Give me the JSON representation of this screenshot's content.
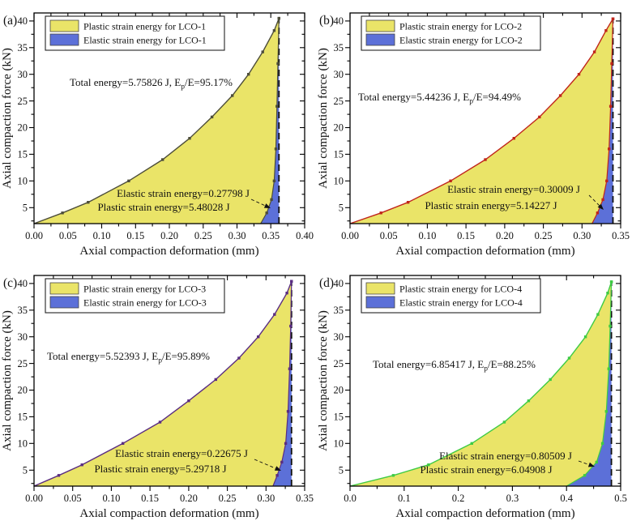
{
  "figure": {
    "background": "#ffffff"
  },
  "chart_data": [
    {
      "type": "area",
      "panel_label": "(a)",
      "sample": "LCO-1",
      "xlabel": "Axial compaction deformation (mm)",
      "ylabel": "Axial compaction force (kN)",
      "xlim": [
        0,
        0.4
      ],
      "xticks": [
        "0.00",
        "0.05",
        "0.10",
        "0.15",
        "0.20",
        "0.25",
        "0.30",
        "0.35",
        "0.40"
      ],
      "ylim": [
        2,
        41.5
      ],
      "yticks": [
        5,
        10,
        15,
        20,
        25,
        30,
        35,
        40
      ],
      "legend": [
        "Plastic strain energy for LCO-1",
        "Elastic strain energy for LCO-1"
      ],
      "legend_position": "upper-left",
      "grid": false,
      "total": {
        "prefix": "Total energy=5.75826 J, E",
        "sub": "p",
        "suffix": "/E=95.17%"
      },
      "total_energy_J": 5.75826,
      "plastic_ratio_pct": 95.17,
      "elastic_label": "Elastic strain energy=0.27798 J",
      "plastic_label": "Plastic strain energy=5.48028 J",
      "elastic_energy_J": 0.27798,
      "plastic_energy_J": 5.48028,
      "line_color": "#4d4d3a",
      "fill_plastic": "#eae468",
      "fill_elastic": "#5c70d8",
      "dash_x": 0.362,
      "loading": [
        [
          0,
          2
        ],
        [
          0.042,
          4
        ],
        [
          0.08,
          6
        ],
        [
          0.14,
          10
        ],
        [
          0.19,
          14
        ],
        [
          0.23,
          18
        ],
        [
          0.263,
          22
        ],
        [
          0.293,
          26
        ],
        [
          0.317,
          30
        ],
        [
          0.338,
          34.2
        ],
        [
          0.355,
          38.2
        ],
        [
          0.362,
          40.5
        ]
      ],
      "unloading": [
        [
          0.362,
          40.5
        ],
        [
          0.3605,
          32
        ],
        [
          0.359,
          24
        ],
        [
          0.3575,
          16
        ],
        [
          0.355,
          10
        ],
        [
          0.351,
          6.5
        ],
        [
          0.344,
          4
        ],
        [
          0.335,
          2
        ]
      ]
    },
    {
      "type": "area",
      "panel_label": "(b)",
      "sample": "LCO-2",
      "xlabel": "Axial compaction deformation (mm)",
      "ylabel": "Axial compaction force (kN)",
      "xlim": [
        0,
        0.35
      ],
      "xticks": [
        "0.00",
        "0.05",
        "0.10",
        "0.15",
        "0.20",
        "0.25",
        "0.30",
        "0.35"
      ],
      "ylim": [
        2,
        41.5
      ],
      "yticks": [
        5,
        10,
        15,
        20,
        25,
        30,
        35,
        40
      ],
      "legend": [
        "Plastic strain energy for LCO-2",
        "Elastic strain energy for LCO-2"
      ],
      "legend_position": "upper-left",
      "grid": false,
      "total": {
        "prefix": "Total energy=5.44236 J, E",
        "sub": "p",
        "suffix": "/E=94.49%"
      },
      "total_energy_J": 5.44236,
      "plastic_ratio_pct": 94.49,
      "elastic_label": "Elastic strain energy=0.30009 J",
      "plastic_label": "Plastic strain energy=5.14227 J",
      "elastic_energy_J": 0.30009,
      "plastic_energy_J": 5.14227,
      "line_color": "#c0251b",
      "fill_plastic": "#eae468",
      "fill_elastic": "#5c70d8",
      "dash_x": 0.34,
      "loading": [
        [
          0,
          2
        ],
        [
          0.04,
          4
        ],
        [
          0.075,
          6
        ],
        [
          0.13,
          10
        ],
        [
          0.175,
          14
        ],
        [
          0.212,
          18
        ],
        [
          0.245,
          22
        ],
        [
          0.272,
          26
        ],
        [
          0.296,
          30
        ],
        [
          0.316,
          34.2
        ],
        [
          0.331,
          38.2
        ],
        [
          0.34,
          40.4
        ]
      ],
      "unloading": [
        [
          0.34,
          40.4
        ],
        [
          0.3385,
          32
        ],
        [
          0.337,
          24
        ],
        [
          0.335,
          16
        ],
        [
          0.332,
          10
        ],
        [
          0.327,
          6.5
        ],
        [
          0.32,
          4
        ],
        [
          0.313,
          2
        ]
      ]
    },
    {
      "type": "area",
      "panel_label": "(c)",
      "sample": "LCO-3",
      "xlabel": "Axial compaction deformation (mm)",
      "ylabel": "Axial compaction force (kN)",
      "xlim": [
        0,
        0.35
      ],
      "xticks": [
        "0.00",
        "0.05",
        "0.10",
        "0.15",
        "0.20",
        "0.25",
        "0.30",
        "0.35"
      ],
      "ylim": [
        2,
        41.5
      ],
      "yticks": [
        5,
        10,
        15,
        20,
        25,
        30,
        35,
        40
      ],
      "legend": [
        "Plastic strain energy for LCO-3",
        "Elastic strain energy for LCO-3"
      ],
      "legend_position": "upper-left",
      "grid": false,
      "total": {
        "prefix": "Total energy=5.52393 J, E",
        "sub": "p",
        "suffix": "/E=95.89%"
      },
      "total_energy_J": 5.52393,
      "plastic_ratio_pct": 95.89,
      "elastic_label": "Elastic strain energy=0.22675 J",
      "plastic_label": "Plastic strain energy=5.29718 J",
      "elastic_energy_J": 0.22675,
      "plastic_energy_J": 5.29718,
      "line_color": "#5a2d82",
      "fill_plastic": "#eae468",
      "fill_elastic": "#5c70d8",
      "dash_x": 0.333,
      "loading": [
        [
          0,
          2
        ],
        [
          0.032,
          4
        ],
        [
          0.062,
          6
        ],
        [
          0.115,
          10
        ],
        [
          0.163,
          14
        ],
        [
          0.2,
          18
        ],
        [
          0.235,
          22
        ],
        [
          0.265,
          26
        ],
        [
          0.29,
          30
        ],
        [
          0.311,
          34.2
        ],
        [
          0.327,
          38.2
        ],
        [
          0.333,
          40.4
        ]
      ],
      "unloading": [
        [
          0.333,
          40.4
        ],
        [
          0.332,
          32
        ],
        [
          0.3305,
          24
        ],
        [
          0.3285,
          16
        ],
        [
          0.3255,
          10
        ],
        [
          0.3205,
          6.5
        ],
        [
          0.3145,
          4
        ],
        [
          0.309,
          2
        ]
      ]
    },
    {
      "type": "area",
      "panel_label": "(d)",
      "sample": "LCO-4",
      "xlabel": "Axial compaction deformation (mm)",
      "ylabel": "Axial compaction force (kN)",
      "xlim": [
        0,
        0.5
      ],
      "xticks": [
        "0.0",
        "0.1",
        "0.2",
        "0.3",
        "0.4",
        "0.5"
      ],
      "ylim": [
        2,
        41.5
      ],
      "yticks": [
        5,
        10,
        15,
        20,
        25,
        30,
        35,
        40
      ],
      "legend": [
        "Plastic strain energy for LCO-4",
        "Elastic strain energy for LCO-4"
      ],
      "legend_position": "upper-left",
      "grid": false,
      "total": {
        "prefix": "Total energy=6.85417 J, E",
        "sub": "p",
        "suffix": "/E=88.25%"
      },
      "total_energy_J": 6.85417,
      "plastic_ratio_pct": 88.25,
      "elastic_label": "Elastic strain energy=0.80509 J",
      "plastic_label": "Plastic strain energy=6.04908 J",
      "elastic_energy_J": 0.80509,
      "plastic_energy_J": 6.04908,
      "line_color": "#3ecb44",
      "fill_plastic": "#eae468",
      "fill_elastic": "#5c70d8",
      "dash_x": 0.483,
      "loading": [
        [
          0,
          2
        ],
        [
          0.08,
          4
        ],
        [
          0.145,
          6
        ],
        [
          0.225,
          10
        ],
        [
          0.285,
          14
        ],
        [
          0.33,
          18
        ],
        [
          0.37,
          22
        ],
        [
          0.405,
          26
        ],
        [
          0.435,
          30
        ],
        [
          0.458,
          34.2
        ],
        [
          0.476,
          38.2
        ],
        [
          0.483,
          40.3
        ]
      ],
      "unloading": [
        [
          0.483,
          40.3
        ],
        [
          0.4805,
          32
        ],
        [
          0.478,
          24
        ],
        [
          0.4735,
          16
        ],
        [
          0.4665,
          10
        ],
        [
          0.4555,
          6.5
        ],
        [
          0.4335,
          4
        ],
        [
          0.4,
          2
        ]
      ]
    }
  ]
}
